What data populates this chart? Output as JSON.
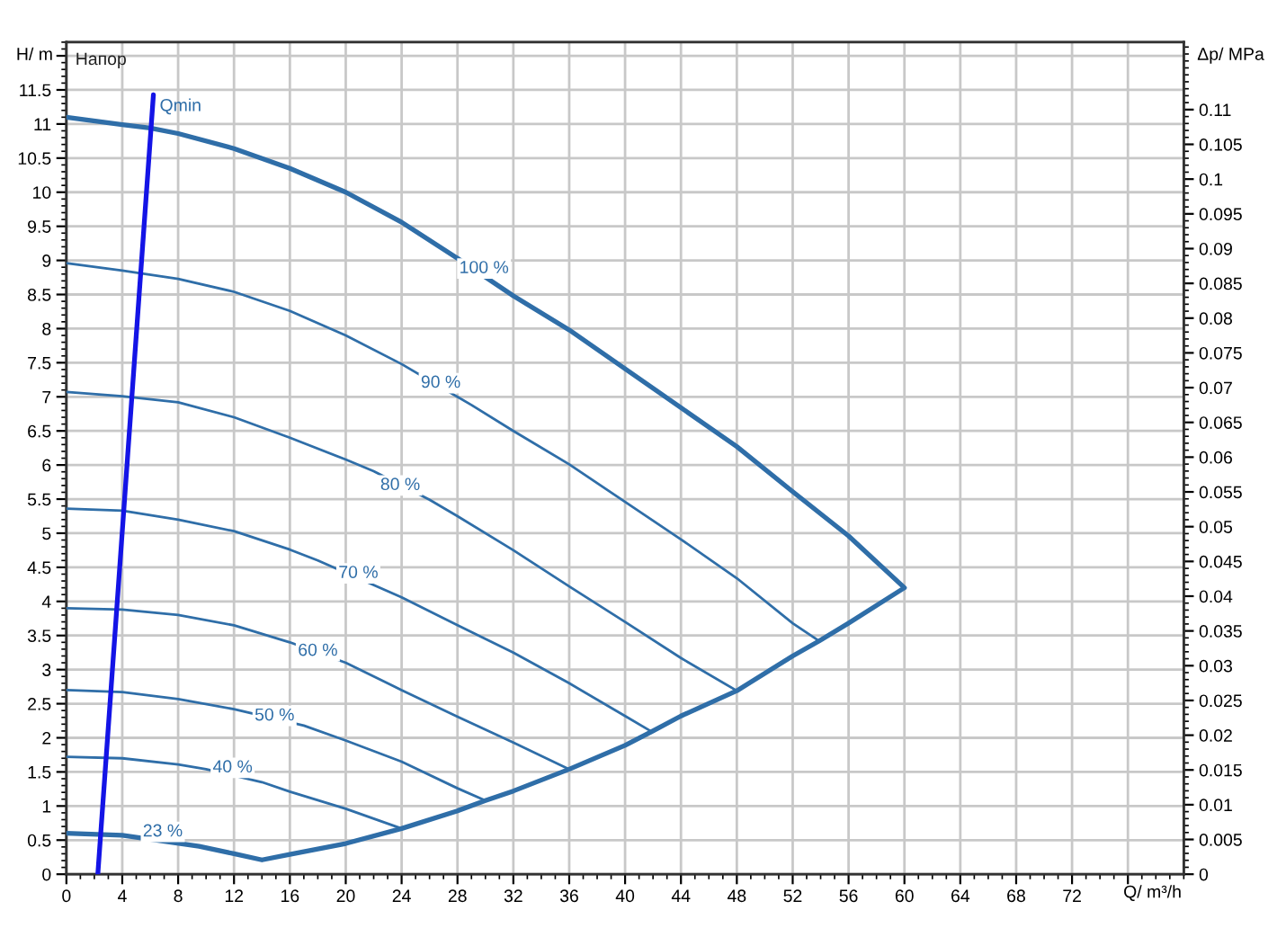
{
  "chart_data": {
    "type": "line",
    "xlabel": "Q/ m³/h",
    "ylabel": "H/ m",
    "y2label": "Δp/ MPa",
    "xlim": [
      0,
      80
    ],
    "xticks": [
      0,
      4,
      8,
      12,
      16,
      20,
      24,
      28,
      32,
      36,
      40,
      44,
      48,
      52,
      56,
      60,
      64,
      68,
      72,
      {
        "value": 76,
        "label": null
      }
    ],
    "ylim": [
      0,
      12.2
    ],
    "yticks": [
      0,
      0.5,
      1,
      1.5,
      2,
      2.5,
      3,
      3.5,
      4,
      4.5,
      5,
      5.5,
      6,
      6.5,
      7,
      7.5,
      8,
      8.5,
      9,
      9.5,
      10,
      10.5,
      11,
      11.5,
      {
        "value": 12,
        "label": null
      }
    ],
    "y2lim": [
      0,
      0.1197
    ],
    "y2ticks": [
      0,
      0.005,
      0.01,
      0.015,
      0.02,
      0.025,
      0.03,
      0.035,
      0.04,
      0.045,
      0.05,
      0.055,
      0.06,
      0.065,
      0.07,
      0.075,
      0.08,
      0.085,
      0.09,
      0.095,
      0.1,
      0.105,
      0.11
    ],
    "grid": true,
    "series": [
      {
        "color": "#2f6ea8",
        "x": [
          0,
          4,
          6,
          8,
          12,
          16,
          20,
          24,
          28,
          32,
          36,
          40,
          44,
          48,
          52,
          56,
          60,
          56,
          53.9,
          52,
          48,
          44,
          41.9,
          40,
          36,
          32,
          30,
          28,
          24,
          20,
          16,
          14,
          12,
          9.5,
          4,
          0
        ],
        "values": [
          11.1,
          10.99,
          10.94,
          10.86,
          10.64,
          10.35,
          10.0,
          9.56,
          9.03,
          8.48,
          7.98,
          7.41,
          6.84,
          6.27,
          5.61,
          4.96,
          4.2,
          3.68,
          3.42,
          3.2,
          2.69,
          2.32,
          2.09,
          1.89,
          1.54,
          1.22,
          1.08,
          0.93,
          0.67,
          0.45,
          0.29,
          0.21,
          0.3,
          0.41,
          0.57,
          0.6
        ]
      },
      {
        "color": "#2f6ea8",
        "x": [
          0,
          4,
          8,
          12,
          16,
          20,
          24,
          29,
          32,
          36,
          40,
          44,
          48,
          52,
          53.9
        ],
        "values": [
          8.96,
          8.85,
          8.73,
          8.54,
          8.26,
          7.9,
          7.48,
          6.88,
          6.5,
          6.01,
          5.46,
          4.91,
          4.34,
          3.68,
          3.42
        ]
      },
      {
        "color": "#2f6ea8",
        "x": [
          0,
          4,
          8,
          12,
          16,
          20,
          22,
          26,
          28,
          32,
          36,
          40,
          44,
          48
        ],
        "values": [
          7.07,
          7.01,
          6.92,
          6.7,
          6.4,
          6.08,
          5.91,
          5.49,
          5.25,
          4.75,
          4.22,
          3.7,
          3.17,
          2.69
        ]
      },
      {
        "color": "#2f6ea8",
        "x": [
          0,
          4,
          8,
          12,
          16,
          18,
          24,
          28,
          32,
          36,
          40,
          41.9
        ],
        "values": [
          5.36,
          5.33,
          5.2,
          5.03,
          4.76,
          4.6,
          4.06,
          3.65,
          3.25,
          2.8,
          2.32,
          2.09
        ]
      },
      {
        "color": "#2f6ea8",
        "x": [
          0,
          4,
          8,
          12,
          16,
          20,
          24,
          28,
          32,
          36
        ],
        "values": [
          3.9,
          3.88,
          3.8,
          3.65,
          3.4,
          3.1,
          2.7,
          2.31,
          1.93,
          1.54
        ]
      },
      {
        "color": "#2f6ea8",
        "x": [
          0,
          4,
          8,
          12,
          17,
          20,
          24,
          28,
          30
        ],
        "values": [
          2.7,
          2.67,
          2.57,
          2.42,
          2.18,
          1.96,
          1.65,
          1.26,
          1.08
        ]
      },
      {
        "color": "#2f6ea8",
        "x": [
          0,
          4,
          8,
          10,
          14,
          16,
          20,
          24
        ],
        "values": [
          1.72,
          1.7,
          1.61,
          1.54,
          1.35,
          1.21,
          0.96,
          0.67
        ]
      },
      {
        "name": "Qmin",
        "color": "#1414e6",
        "x": [
          2.25,
          6.23
        ],
        "values": [
          0,
          11.43
        ]
      }
    ],
    "annotations": [
      "Напор",
      {
        "text": "100 %",
        "x": 29.9,
        "y": 8.88
      },
      {
        "text": "90 %",
        "x": 26.8,
        "y": 7.2
      },
      {
        "text": "80 %",
        "x": 23.9,
        "y": 5.7
      },
      {
        "text": "70 %",
        "x": 20.9,
        "y": 4.41
      },
      {
        "text": "60 %",
        "x": 18.0,
        "y": 3.27
      },
      {
        "text": "50 %",
        "x": 14.9,
        "y": 2.32
      },
      {
        "text": "40 %",
        "x": 11.9,
        "y": 1.56
      },
      {
        "text": "23 %",
        "x": 6.9,
        "y": 0.62
      }
    ]
  }
}
